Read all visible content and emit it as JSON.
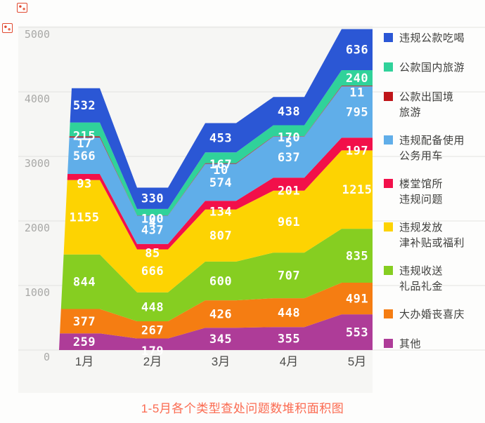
{
  "page": {
    "caption": "1-5月各个类型查处问题数堆积面积图"
  },
  "chart_data": {
    "type": "area",
    "stacked": true,
    "title": "1-5月各个类型查处问题数堆积面积图",
    "categories": [
      "1月",
      "2月",
      "3月",
      "4月",
      "5月"
    ],
    "yticks": [
      0,
      1000,
      2000,
      3000,
      4000,
      5000
    ],
    "ylim": [
      0,
      5500
    ],
    "grid": true,
    "legend_position": "right",
    "series": [
      {
        "name": "其他",
        "color": "#ae3c98",
        "values": [
          259,
          179,
          345,
          355,
          553
        ]
      },
      {
        "name": "大办婚丧喜庆",
        "color": "#f57d12",
        "values": [
          377,
          267,
          426,
          448,
          491
        ]
      },
      {
        "name": "违规收送礼品礼金",
        "color": "#86ce21",
        "values": [
          844,
          448,
          600,
          707,
          835
        ]
      },
      {
        "name": "违规发放津补贴或福利",
        "color": "#fdd302",
        "values": [
          1155,
          666,
          807,
          961,
          1215
        ]
      },
      {
        "name": "楼堂馆所违规问题",
        "color": "#f2104a",
        "values": [
          93,
          85,
          134,
          201,
          197
        ]
      },
      {
        "name": "违规配备使用公务用车",
        "color": "#60aee9",
        "values": [
          566,
          437,
          574,
          637,
          795
        ]
      },
      {
        "name": "公款出国境旅游",
        "color": "#bf1519",
        "values": [
          17,
          4,
          10,
          5,
          11
        ]
      },
      {
        "name": "公款国内旅游",
        "color": "#30d29a",
        "values": [
          215,
          100,
          167,
          170,
          240
        ]
      },
      {
        "name": "违规公款吃喝",
        "color": "#2b57d5",
        "values": [
          532,
          330,
          453,
          438,
          636
        ]
      }
    ],
    "legend_items": [
      {
        "lines": [
          "违规公款吃喝"
        ],
        "color": "#2b57d5"
      },
      {
        "lines": [
          "公款国内旅游"
        ],
        "color": "#30d29a"
      },
      {
        "lines": [
          "公款出国境",
          "旅游"
        ],
        "color": "#bf1519"
      },
      {
        "lines": [
          "违规配备使用",
          "公务用车"
        ],
        "color": "#60aee9"
      },
      {
        "lines": [
          "楼堂馆所",
          "违规问题"
        ],
        "color": "#f2104a"
      },
      {
        "lines": [
          "违规发放",
          "津补贴或福利"
        ],
        "color": "#fdd302"
      },
      {
        "lines": [
          "违规收送",
          "礼品礼金"
        ],
        "color": "#86ce21"
      },
      {
        "lines": [
          "大办婚丧喜庆"
        ],
        "color": "#f57d12"
      },
      {
        "lines": [
          "其他"
        ],
        "color": "#ae3c98"
      }
    ]
  }
}
